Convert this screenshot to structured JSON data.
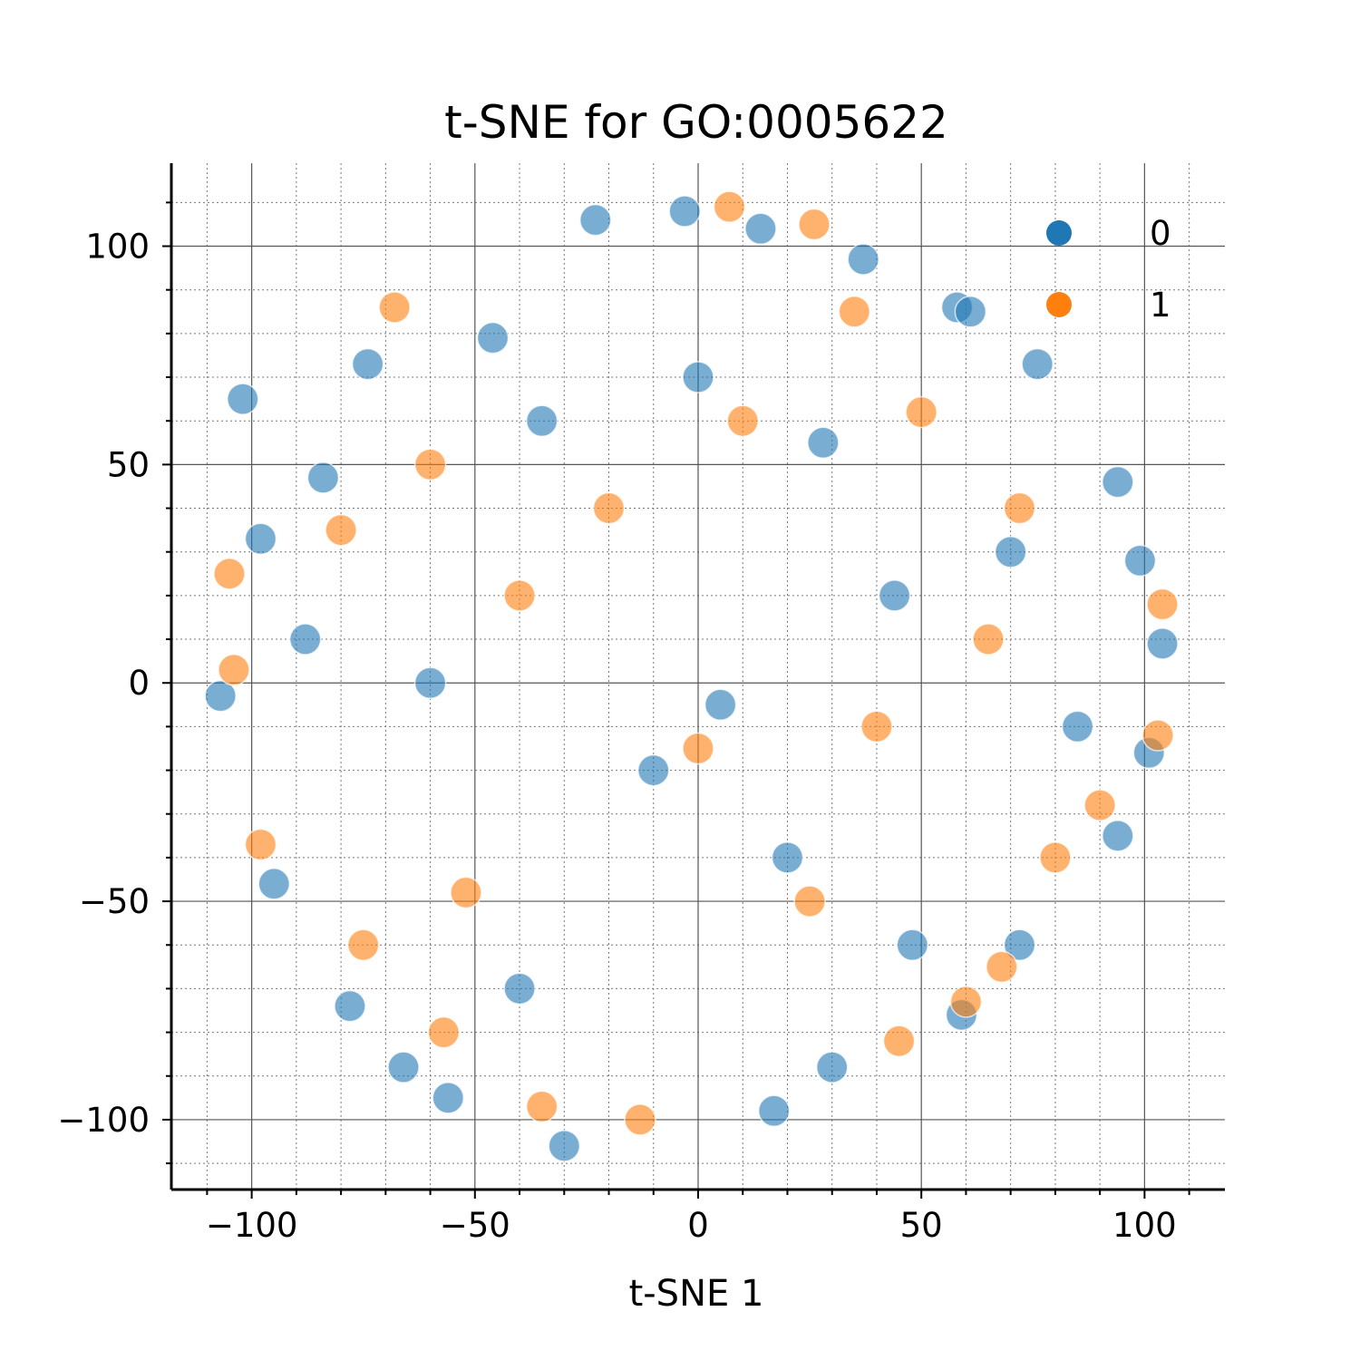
{
  "chart_data": {
    "type": "scatter",
    "title": "t-SNE for GO:0005622",
    "xlabel": "t-SNE 1",
    "ylabel": "",
    "xlim": [
      -118,
      118
    ],
    "ylim": [
      -116,
      119
    ],
    "x_ticks": [
      -100,
      -50,
      0,
      50,
      100
    ],
    "y_ticks": [
      -100,
      -50,
      0,
      50,
      100
    ],
    "x_tick_labels": [
      "−100",
      "−50",
      "0",
      "50",
      "100"
    ],
    "y_tick_labels": [
      "−100",
      "−50",
      "0",
      "50",
      "100"
    ],
    "grid": {
      "major": true,
      "minor": true
    },
    "legend_position": "top-right",
    "colors": {
      "0": "#1f77b4",
      "1": "#ff7f0e"
    },
    "point_alpha": 0.6,
    "series": [
      {
        "name": "0",
        "color": "#1f77b4",
        "x": [
          -3,
          -23,
          14,
          37,
          58,
          -46,
          -74,
          -102,
          -98,
          -84,
          61,
          76,
          94,
          99,
          104,
          101,
          94,
          72,
          59,
          30,
          17,
          -30,
          -56,
          -66,
          -78,
          -107,
          -95,
          -35,
          0,
          28,
          -10,
          44,
          -60,
          20,
          70,
          -40,
          5,
          48,
          -88,
          85
        ],
        "y": [
          108,
          106,
          104,
          97,
          86,
          79,
          73,
          65,
          33,
          47,
          85,
          73,
          46,
          28,
          9,
          -16,
          -35,
          -60,
          -76,
          -88,
          -98,
          -106,
          -95,
          -88,
          -74,
          -3,
          -46,
          60,
          70,
          55,
          -20,
          20,
          0,
          -40,
          30,
          -70,
          -5,
          -60,
          10,
          -10
        ]
      },
      {
        "name": "1",
        "color": "#ff7f0e",
        "x": [
          26,
          7,
          -68,
          -105,
          -104,
          -98,
          104,
          103,
          90,
          68,
          60,
          45,
          -13,
          -35,
          -57,
          -75,
          -52,
          10,
          35,
          72,
          -80,
          50,
          -20,
          25,
          65,
          -40,
          0,
          80,
          -60,
          40
        ],
        "y": [
          105,
          109,
          86,
          25,
          3,
          -37,
          18,
          -12,
          -28,
          -65,
          -73,
          -82,
          -100,
          -97,
          -80,
          -60,
          -48,
          60,
          85,
          40,
          35,
          62,
          40,
          -50,
          10,
          20,
          -15,
          -40,
          50,
          -10
        ]
      }
    ]
  }
}
